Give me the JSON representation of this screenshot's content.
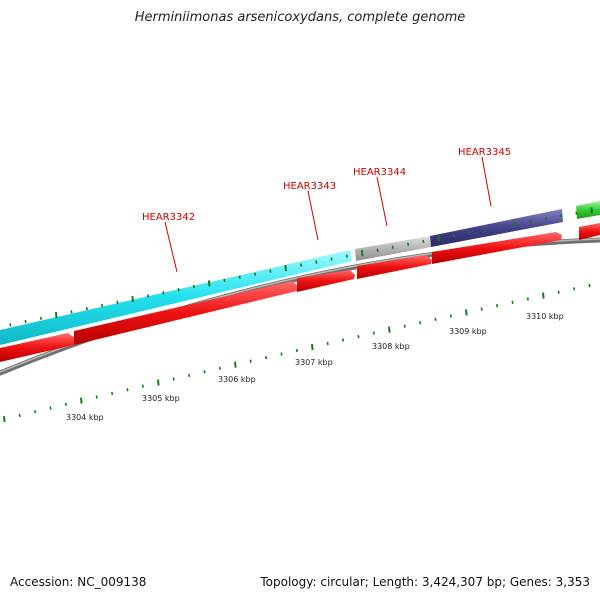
{
  "title": "Herminiimonas arsenicoxydans, complete genome",
  "accession": "Accession: NC_009138",
  "topology": "Topology: circular; Length: 3,424,307 bp; Genes: 3,353",
  "colors": {
    "backbone": "#8a8a8a",
    "forward_cds": "#ee1111",
    "cyan_feature": "#22e0ee",
    "gray_feature": "#b4b4b4",
    "navy_feature": "#44408a",
    "green_feature": "#33cc33",
    "ticks": "#1a7a1a",
    "gene_label": "#cc0000"
  },
  "gene_labels": [
    "HEAR3342",
    "HEAR3343",
    "HEAR3344",
    "HEAR3345"
  ],
  "kbp_labels": [
    "3304 kbp",
    "3305 kbp",
    "3306 kbp",
    "3307 kbp",
    "3308 kbp",
    "3309 kbp",
    "3310 kbp"
  ]
}
